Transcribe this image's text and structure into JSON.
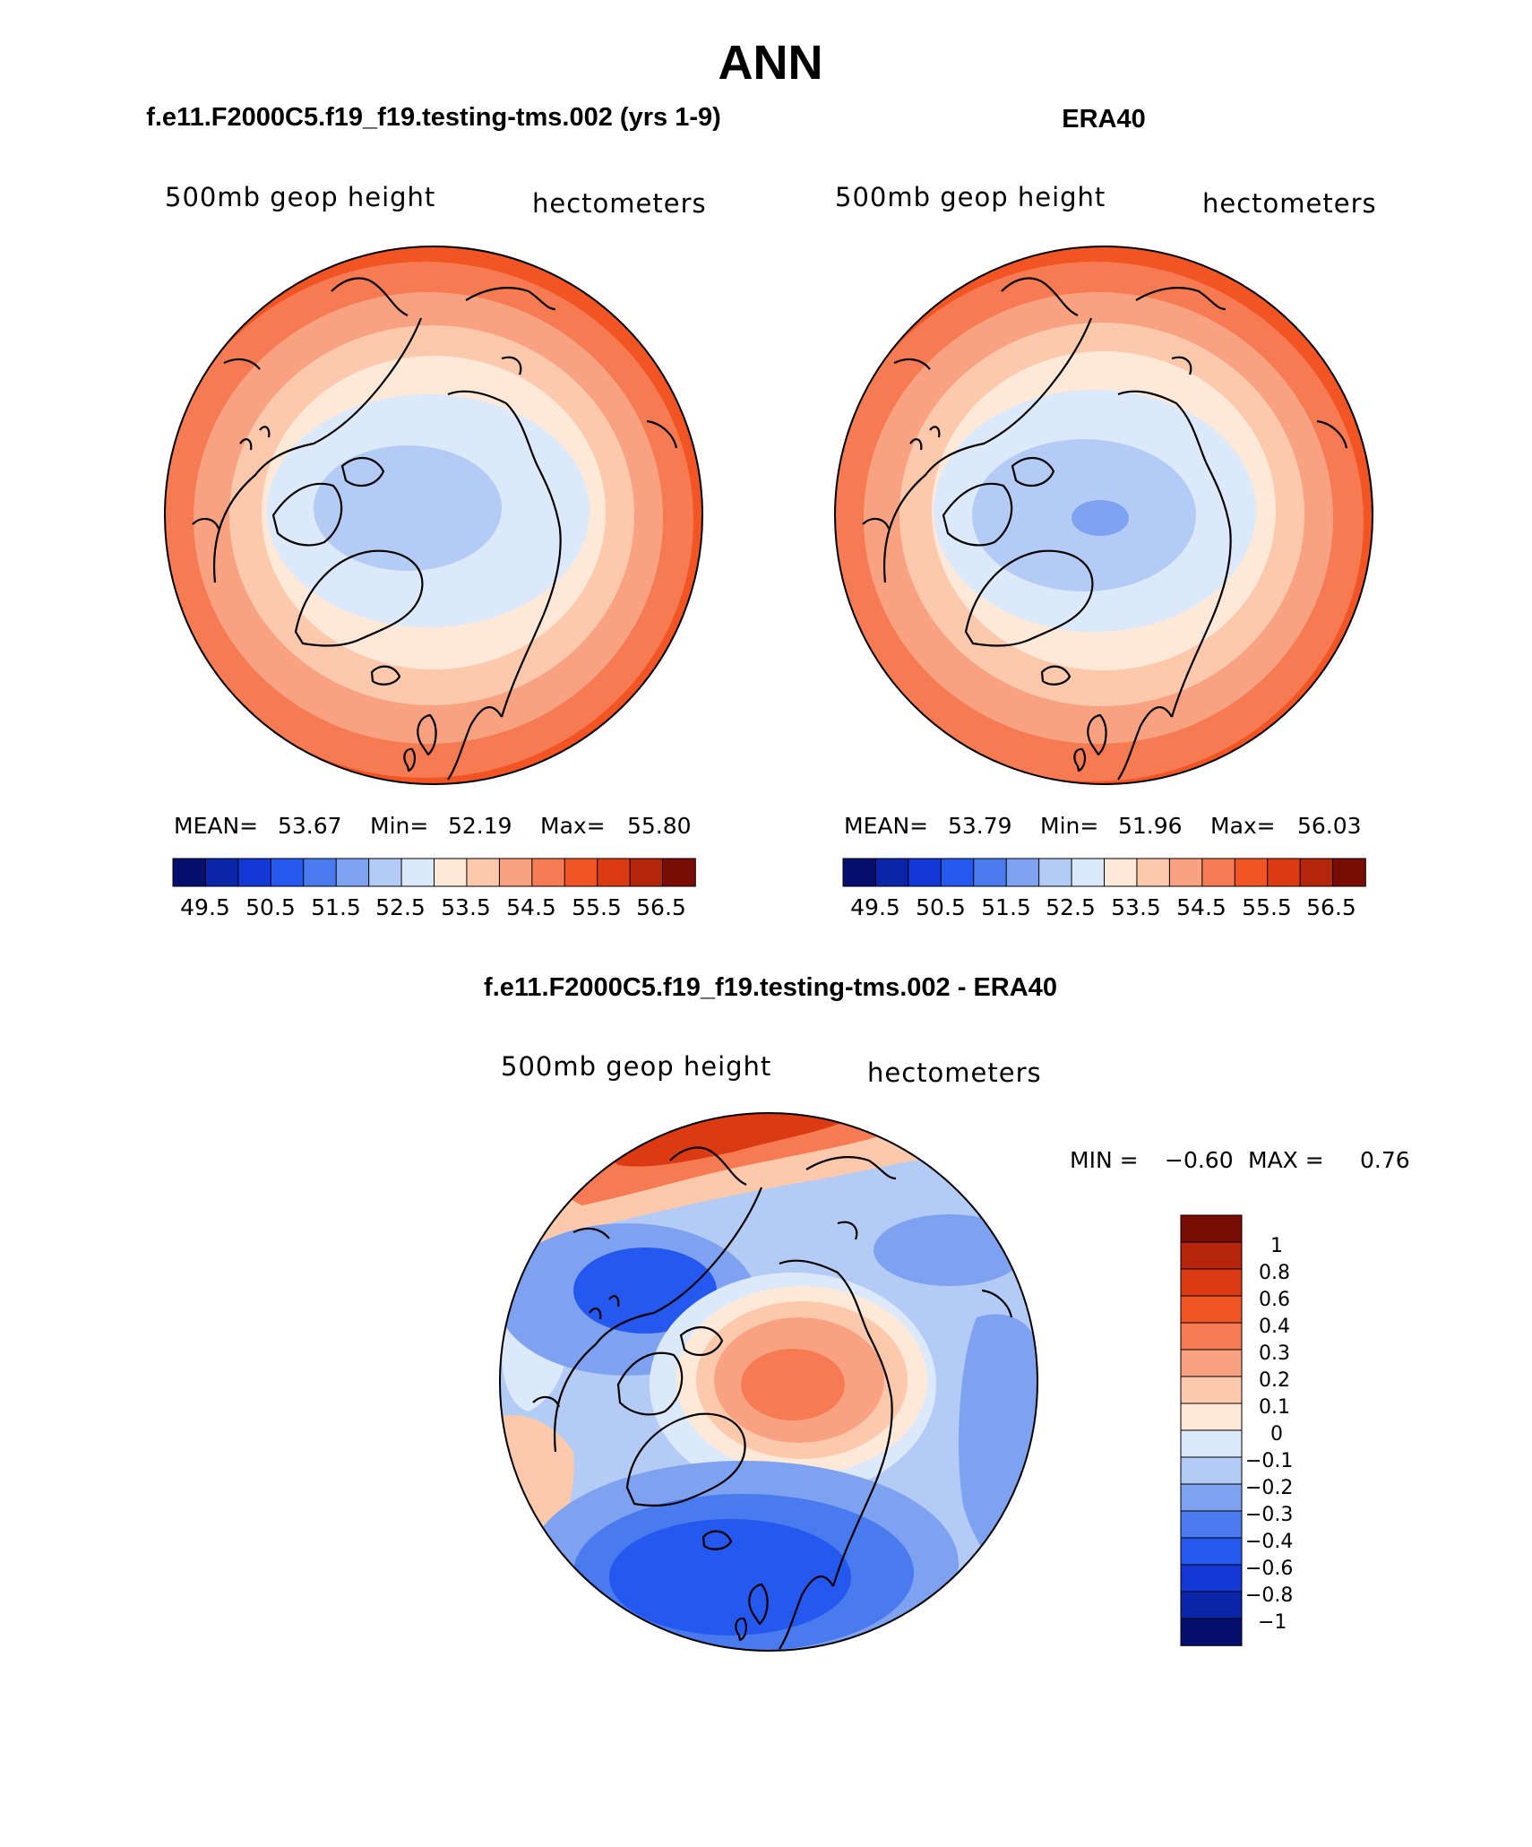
{
  "figure": {
    "title": "ANN",
    "maps": [
      {
        "id": "model",
        "header": "f.e11.F2000C5.f19_f19.testing-tms.002 (yrs 1-9)",
        "field_label": "500mb geop height",
        "units_label": "hectometers",
        "stats_text": {
          "mean_label": "MEAN=",
          "mean": "53.67",
          "min_label": "Min=",
          "min": "52.19",
          "max_label": "Max=",
          "max": "55.80"
        },
        "contour_levels": [
          49.5,
          50,
          50.5,
          51,
          51.5,
          52,
          52.5,
          53,
          53.5,
          54,
          54.5,
          55,
          55.5,
          56,
          56.5
        ],
        "colorbar_labels": [
          "49.5",
          "50.5",
          "51.5",
          "52.5",
          "53.5",
          "54.5",
          "55.5",
          "56.5"
        ]
      },
      {
        "id": "obs",
        "header": "ERA40",
        "field_label": "500mb geop height",
        "units_label": "hectometers",
        "stats_text": {
          "mean_label": "MEAN=",
          "mean": "53.79",
          "min_label": "Min=",
          "min": "51.96",
          "max_label": "Max=",
          "max": "56.03"
        },
        "contour_levels": [
          49.5,
          50,
          50.5,
          51,
          51.5,
          52,
          52.5,
          53,
          53.5,
          54,
          54.5,
          55,
          55.5,
          56,
          56.5
        ],
        "colorbar_labels": [
          "49.5",
          "50.5",
          "51.5",
          "52.5",
          "53.5",
          "54.5",
          "55.5",
          "56.5"
        ]
      },
      {
        "id": "diff",
        "header": "f.e11.F2000C5.f19_f19.testing-tms.002 - ERA40",
        "field_label": "500mb geop height",
        "units_label": "hectometers",
        "stats_text": {
          "min_label": "MIN =",
          "min": "−0.60",
          "max_label": "MAX =",
          "max": "0.76"
        },
        "colorbar_labels": [
          "1",
          "0.8",
          "0.6",
          "0.4",
          "0.3",
          "0.2",
          "0.1",
          "0",
          "−0.1",
          "−0.2",
          "−0.3",
          "−0.4",
          "−0.6",
          "−0.8",
          "−1"
        ]
      }
    ],
    "colors": {
      "abs_palette": [
        "#050f6e",
        "#0a25a8",
        "#1438d6",
        "#2458ee",
        "#4a7bee",
        "#7fa2f0",
        "#b3cbf5",
        "#dce9fb",
        "#fee8d8",
        "#fcc9ad",
        "#f9a282",
        "#f67a52",
        "#f25424",
        "#dc3a12",
        "#b5250c",
        "#7a0c06"
      ],
      "diff_palette": [
        "#050f6e",
        "#0a25a8",
        "#1438d6",
        "#2458ee",
        "#4a7bee",
        "#7fa2f0",
        "#b3cbf5",
        "#dce9fb",
        "#fee8d8",
        "#fcc9ad",
        "#f9a282",
        "#f67a52",
        "#f25424",
        "#dc3a12",
        "#b5250c",
        "#7a0c06"
      ]
    }
  }
}
